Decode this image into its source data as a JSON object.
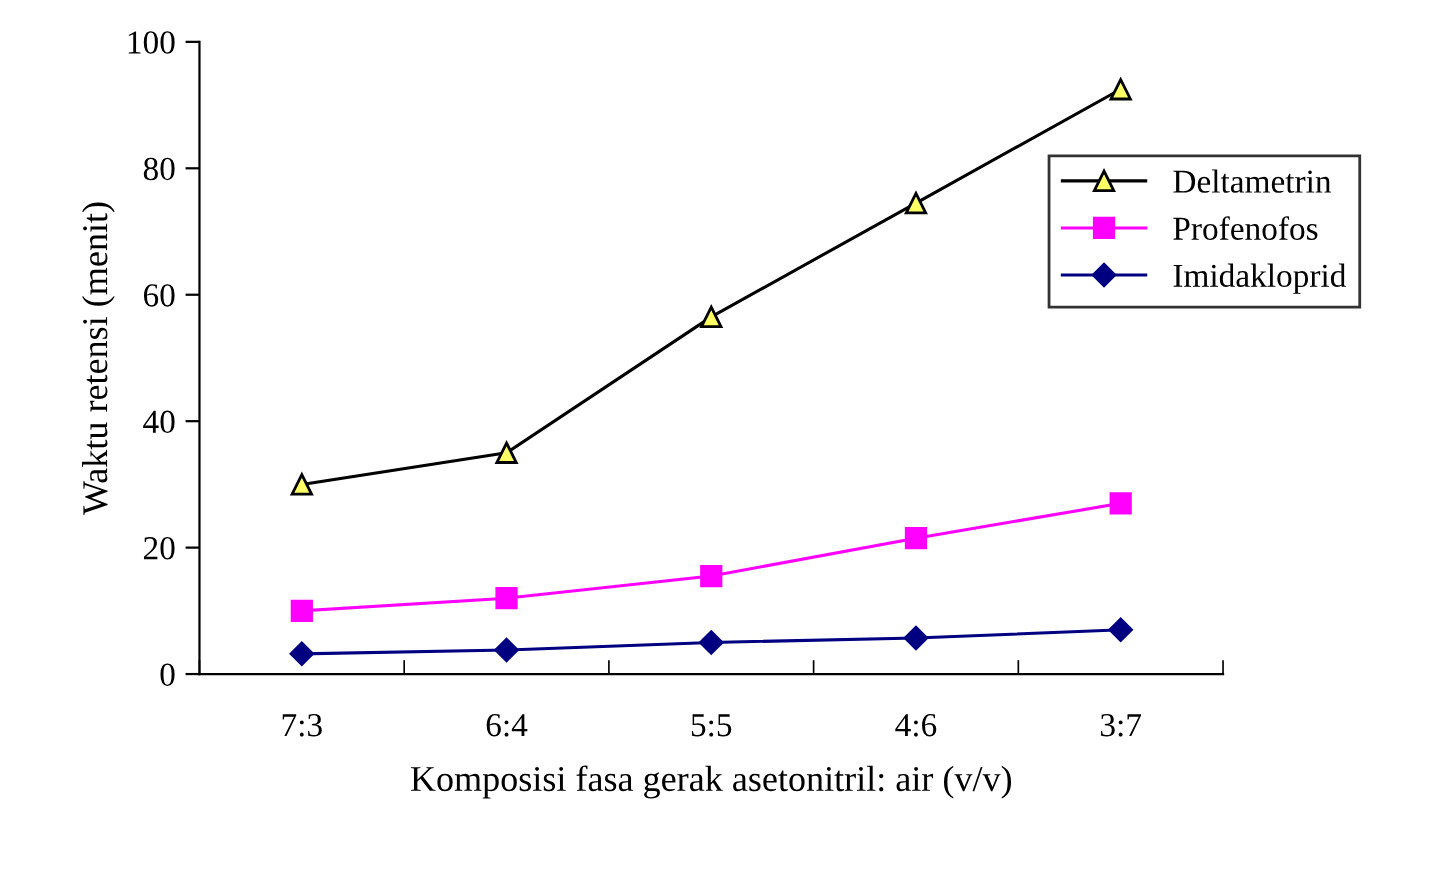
{
  "chart_data": {
    "type": "line",
    "xlabel": "Komposisi fasa gerak asetonitril: air (v/v)",
    "ylabel": "Waktu retensi (menit)",
    "categories": [
      "7:3",
      "6:4",
      "5:5",
      "4:6",
      "3:7"
    ],
    "series": [
      {
        "name": "Deltametrin",
        "color": "#000000",
        "marker": "triangle",
        "values": [
          30,
          35,
          56.5,
          74.5,
          92.5
        ]
      },
      {
        "name": "Profenofos",
        "color": "#ff00ff",
        "marker": "square",
        "values": [
          10,
          12,
          15.5,
          21.5,
          27
        ]
      },
      {
        "name": "Imidakloprid",
        "color": "#000080",
        "marker": "diamond",
        "values": [
          3.2,
          3.8,
          5,
          5.7,
          7
        ]
      }
    ],
    "ylim": [
      0,
      100
    ],
    "yticks": [
      0,
      20,
      40,
      60,
      80,
      100
    ],
    "grid": false,
    "legend": "right"
  }
}
